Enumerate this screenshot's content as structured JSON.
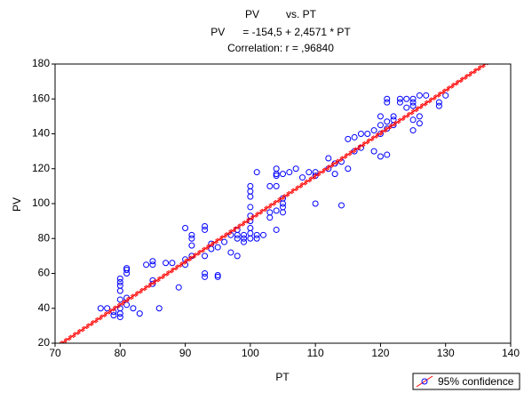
{
  "chart_data": {
    "type": "scatter",
    "title": "PV         vs. PT",
    "subtitle": "PV      = -154,5 + 2,4571 * PT",
    "annotation": "Correlation: r = ,96840",
    "x_label": "PT",
    "y_label": "PV",
    "xlim": [
      70,
      140
    ],
    "xticks": [
      70,
      80,
      90,
      100,
      110,
      120,
      130,
      140
    ],
    "ylim": [
      20,
      180
    ],
    "yticks": [
      20,
      40,
      60,
      80,
      100,
      120,
      140,
      160,
      180
    ],
    "grid": false,
    "legend_position": "bottom-right",
    "fit": {
      "name": "95% confidence",
      "color": "#ff0000",
      "intercept": -154.5,
      "slope": 2.4571
    },
    "series": [
      {
        "color": "#0000ff",
        "x": [
          77,
          78,
          79,
          79,
          80,
          80,
          80,
          80,
          80,
          80,
          80,
          80,
          81,
          81,
          81,
          81,
          81,
          82,
          83,
          84,
          85,
          85,
          85,
          85,
          86,
          87,
          88,
          89,
          90,
          90,
          90,
          91,
          91,
          91,
          91,
          93,
          93,
          93,
          93,
          93,
          94,
          94,
          95,
          95,
          95,
          96,
          97,
          97,
          98,
          98,
          98,
          98,
          99,
          99,
          99,
          100,
          100,
          100,
          100,
          100,
          100,
          100,
          100,
          100,
          101,
          101,
          101,
          102,
          103,
          103,
          103,
          104,
          104,
          104,
          104,
          104,
          104,
          105,
          105,
          105,
          105,
          105,
          106,
          107,
          108,
          109,
          110,
          110,
          110,
          112,
          112,
          113,
          113,
          114,
          114,
          115,
          115,
          116,
          116,
          117,
          117,
          118,
          119,
          119,
          120,
          120,
          120,
          120,
          121,
          121,
          121,
          121,
          121,
          122,
          122,
          122,
          123,
          123,
          124,
          124,
          125,
          125,
          125,
          125,
          125,
          126,
          126,
          126,
          127,
          129,
          129,
          130
        ],
        "values": [
          40,
          40,
          38,
          36,
          35,
          37,
          40,
          45,
          50,
          53,
          55,
          57,
          42,
          46,
          60,
          62,
          63,
          40,
          37,
          65,
          54,
          56,
          65,
          67,
          40,
          66,
          66,
          52,
          68,
          65,
          86,
          70,
          76,
          80,
          82,
          60,
          58,
          70,
          85,
          87,
          77,
          74,
          75,
          58,
          59,
          78,
          82,
          72,
          70,
          85,
          80,
          82,
          82,
          78,
          80,
          80,
          83,
          86,
          90,
          93,
          98,
          104,
          107,
          110,
          80,
          82,
          118,
          82,
          92,
          95,
          110,
          85,
          96,
          110,
          116,
          120,
          117,
          95,
          98,
          100,
          103,
          117,
          118,
          120,
          115,
          118,
          100,
          116,
          118,
          120,
          126,
          117,
          123,
          99,
          124,
          120,
          137,
          138,
          130,
          140,
          132,
          140,
          142,
          130,
          127,
          140,
          145,
          150,
          128,
          143,
          147,
          158,
          160,
          145,
          148,
          150,
          158,
          160,
          160,
          155,
          142,
          148,
          156,
          158,
          160,
          146,
          150,
          162,
          162,
          156,
          158,
          162
        ]
      }
    ]
  }
}
